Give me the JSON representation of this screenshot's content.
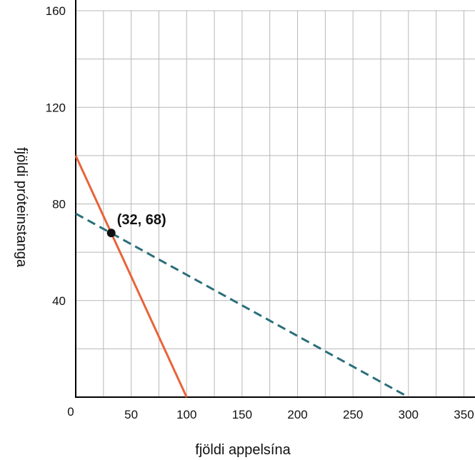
{
  "chart_data": {
    "type": "line",
    "xlabel": "fjöldi appelsína",
    "ylabel": "fjöldi próteinstanga",
    "xlim": [
      0,
      360
    ],
    "ylim": [
      0,
      160
    ],
    "x_tick_labels": [
      "50",
      "100",
      "150",
      "200",
      "250",
      "300",
      "350"
    ],
    "y_tick_labels": [
      "40",
      "80",
      "120",
      "160"
    ],
    "origin_label": "0",
    "x_grid_step": 25,
    "y_grid_step": 20,
    "grid": true,
    "series": [
      {
        "style": "solid",
        "color": "#e8643a",
        "x": [
          0,
          100
        ],
        "y": [
          100,
          0
        ]
      },
      {
        "style": "dashed",
        "color": "#2a6f7a",
        "x": [
          0,
          300
        ],
        "y": [
          76,
          0
        ]
      }
    ],
    "annotations": [
      {
        "x": 32,
        "y": 68,
        "label": "(32, 68)",
        "color": "#111111"
      }
    ]
  }
}
